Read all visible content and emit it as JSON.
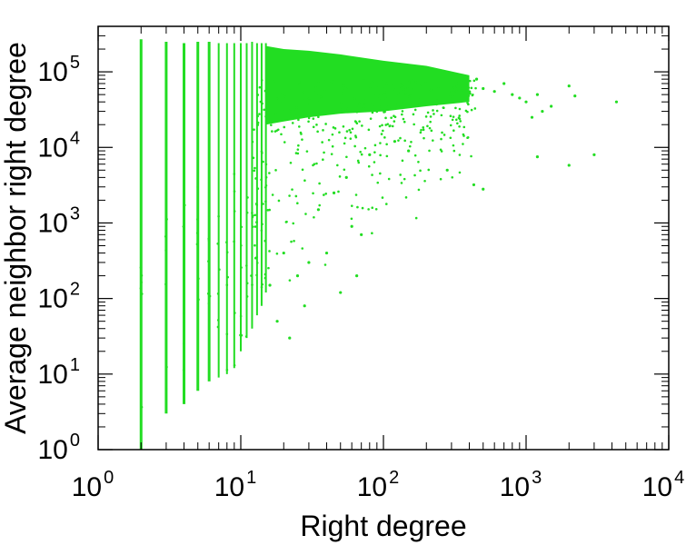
{
  "chart_data": {
    "type": "scatter",
    "title": "",
    "xlabel": "Right degree",
    "ylabel": "Average neighbor right degree",
    "xscale": "log",
    "yscale": "log",
    "xlim": [
      1,
      10000
    ],
    "ylim": [
      1,
      400000
    ],
    "grid": false,
    "legend": "none",
    "xticks": [
      {
        "base": "10",
        "exp": "0"
      },
      {
        "base": "10",
        "exp": "1"
      },
      {
        "base": "10",
        "exp": "2"
      },
      {
        "base": "10",
        "exp": "3"
      },
      {
        "base": "10",
        "exp": "4"
      }
    ],
    "yticks": [
      {
        "base": "10",
        "exp": "0"
      },
      {
        "base": "10",
        "exp": "1"
      },
      {
        "base": "10",
        "exp": "2"
      },
      {
        "base": "10",
        "exp": "3"
      },
      {
        "base": "10",
        "exp": "4"
      },
      {
        "base": "10",
        "exp": "5"
      }
    ],
    "point_color": "#22dd22",
    "series": [
      {
        "columns": [
          {
            "x": 2,
            "y_min": 1,
            "y_max": 270000
          },
          {
            "x": 3,
            "y_min": 3,
            "y_max": 250000
          },
          {
            "x": 4,
            "y_min": 4,
            "y_max": 240000
          },
          {
            "x": 5,
            "y_min": 6,
            "y_max": 250000
          },
          {
            "x": 6,
            "y_min": 8,
            "y_max": 250000
          },
          {
            "x": 7,
            "y_min": 9,
            "y_max": 240000
          },
          {
            "x": 8,
            "y_min": 10,
            "y_max": 240000
          },
          {
            "x": 9,
            "y_min": 12,
            "y_max": 240000
          },
          {
            "x": 10,
            "y_min": 20,
            "y_max": 240000
          },
          {
            "x": 11,
            "y_min": 30,
            "y_max": 240000
          },
          {
            "x": 12,
            "y_min": 40,
            "y_max": 250000
          },
          {
            "x": 13,
            "y_min": 60,
            "y_max": 240000
          },
          {
            "x": 14,
            "y_min": 80,
            "y_max": 240000
          },
          {
            "x": 15,
            "y_min": 120,
            "y_max": 240000
          }
        ],
        "dense_cloud": [
          {
            "x": 15,
            "y_low": 20000,
            "y_high": 220000
          },
          {
            "x": 20,
            "y_low": 22000,
            "y_high": 200000
          },
          {
            "x": 30,
            "y_low": 25000,
            "y_high": 190000
          },
          {
            "x": 50,
            "y_low": 28000,
            "y_high": 170000
          },
          {
            "x": 100,
            "y_low": 30000,
            "y_high": 140000
          },
          {
            "x": 200,
            "y_low": 35000,
            "y_high": 120000
          },
          {
            "x": 400,
            "y_low": 40000,
            "y_high": 90000
          }
        ],
        "sparse_points": [
          [
            450,
            80000
          ],
          [
            500,
            60000
          ],
          [
            600,
            55000
          ],
          [
            700,
            70000
          ],
          [
            800,
            50000
          ],
          [
            900,
            45000
          ],
          [
            1000,
            40000
          ],
          [
            1100,
            25000
          ],
          [
            1200,
            50000
          ],
          [
            1300,
            30000
          ],
          [
            1500,
            35000
          ],
          [
            2000,
            65000
          ],
          [
            2200,
            48000
          ],
          [
            3000,
            8000
          ],
          [
            4300,
            40000
          ],
          [
            2000,
            5800
          ],
          [
            1200,
            7500
          ],
          [
            280,
            5000
          ],
          [
            430,
            3200
          ],
          [
            500,
            2800
          ],
          [
            60,
            900
          ],
          [
            70,
            700
          ],
          [
            40,
            400
          ],
          [
            30,
            300
          ],
          [
            25,
            200
          ],
          [
            22,
            30
          ],
          [
            18,
            50
          ],
          [
            16,
            150
          ],
          [
            20,
            400
          ],
          [
            35,
            1500
          ],
          [
            45,
            2500
          ],
          [
            55,
            4000
          ],
          [
            80,
            8000
          ],
          [
            120,
            12000
          ],
          [
            150,
            9000
          ],
          [
            65,
            200
          ],
          [
            50,
            120
          ],
          [
            28,
            80
          ]
        ]
      }
    ]
  }
}
